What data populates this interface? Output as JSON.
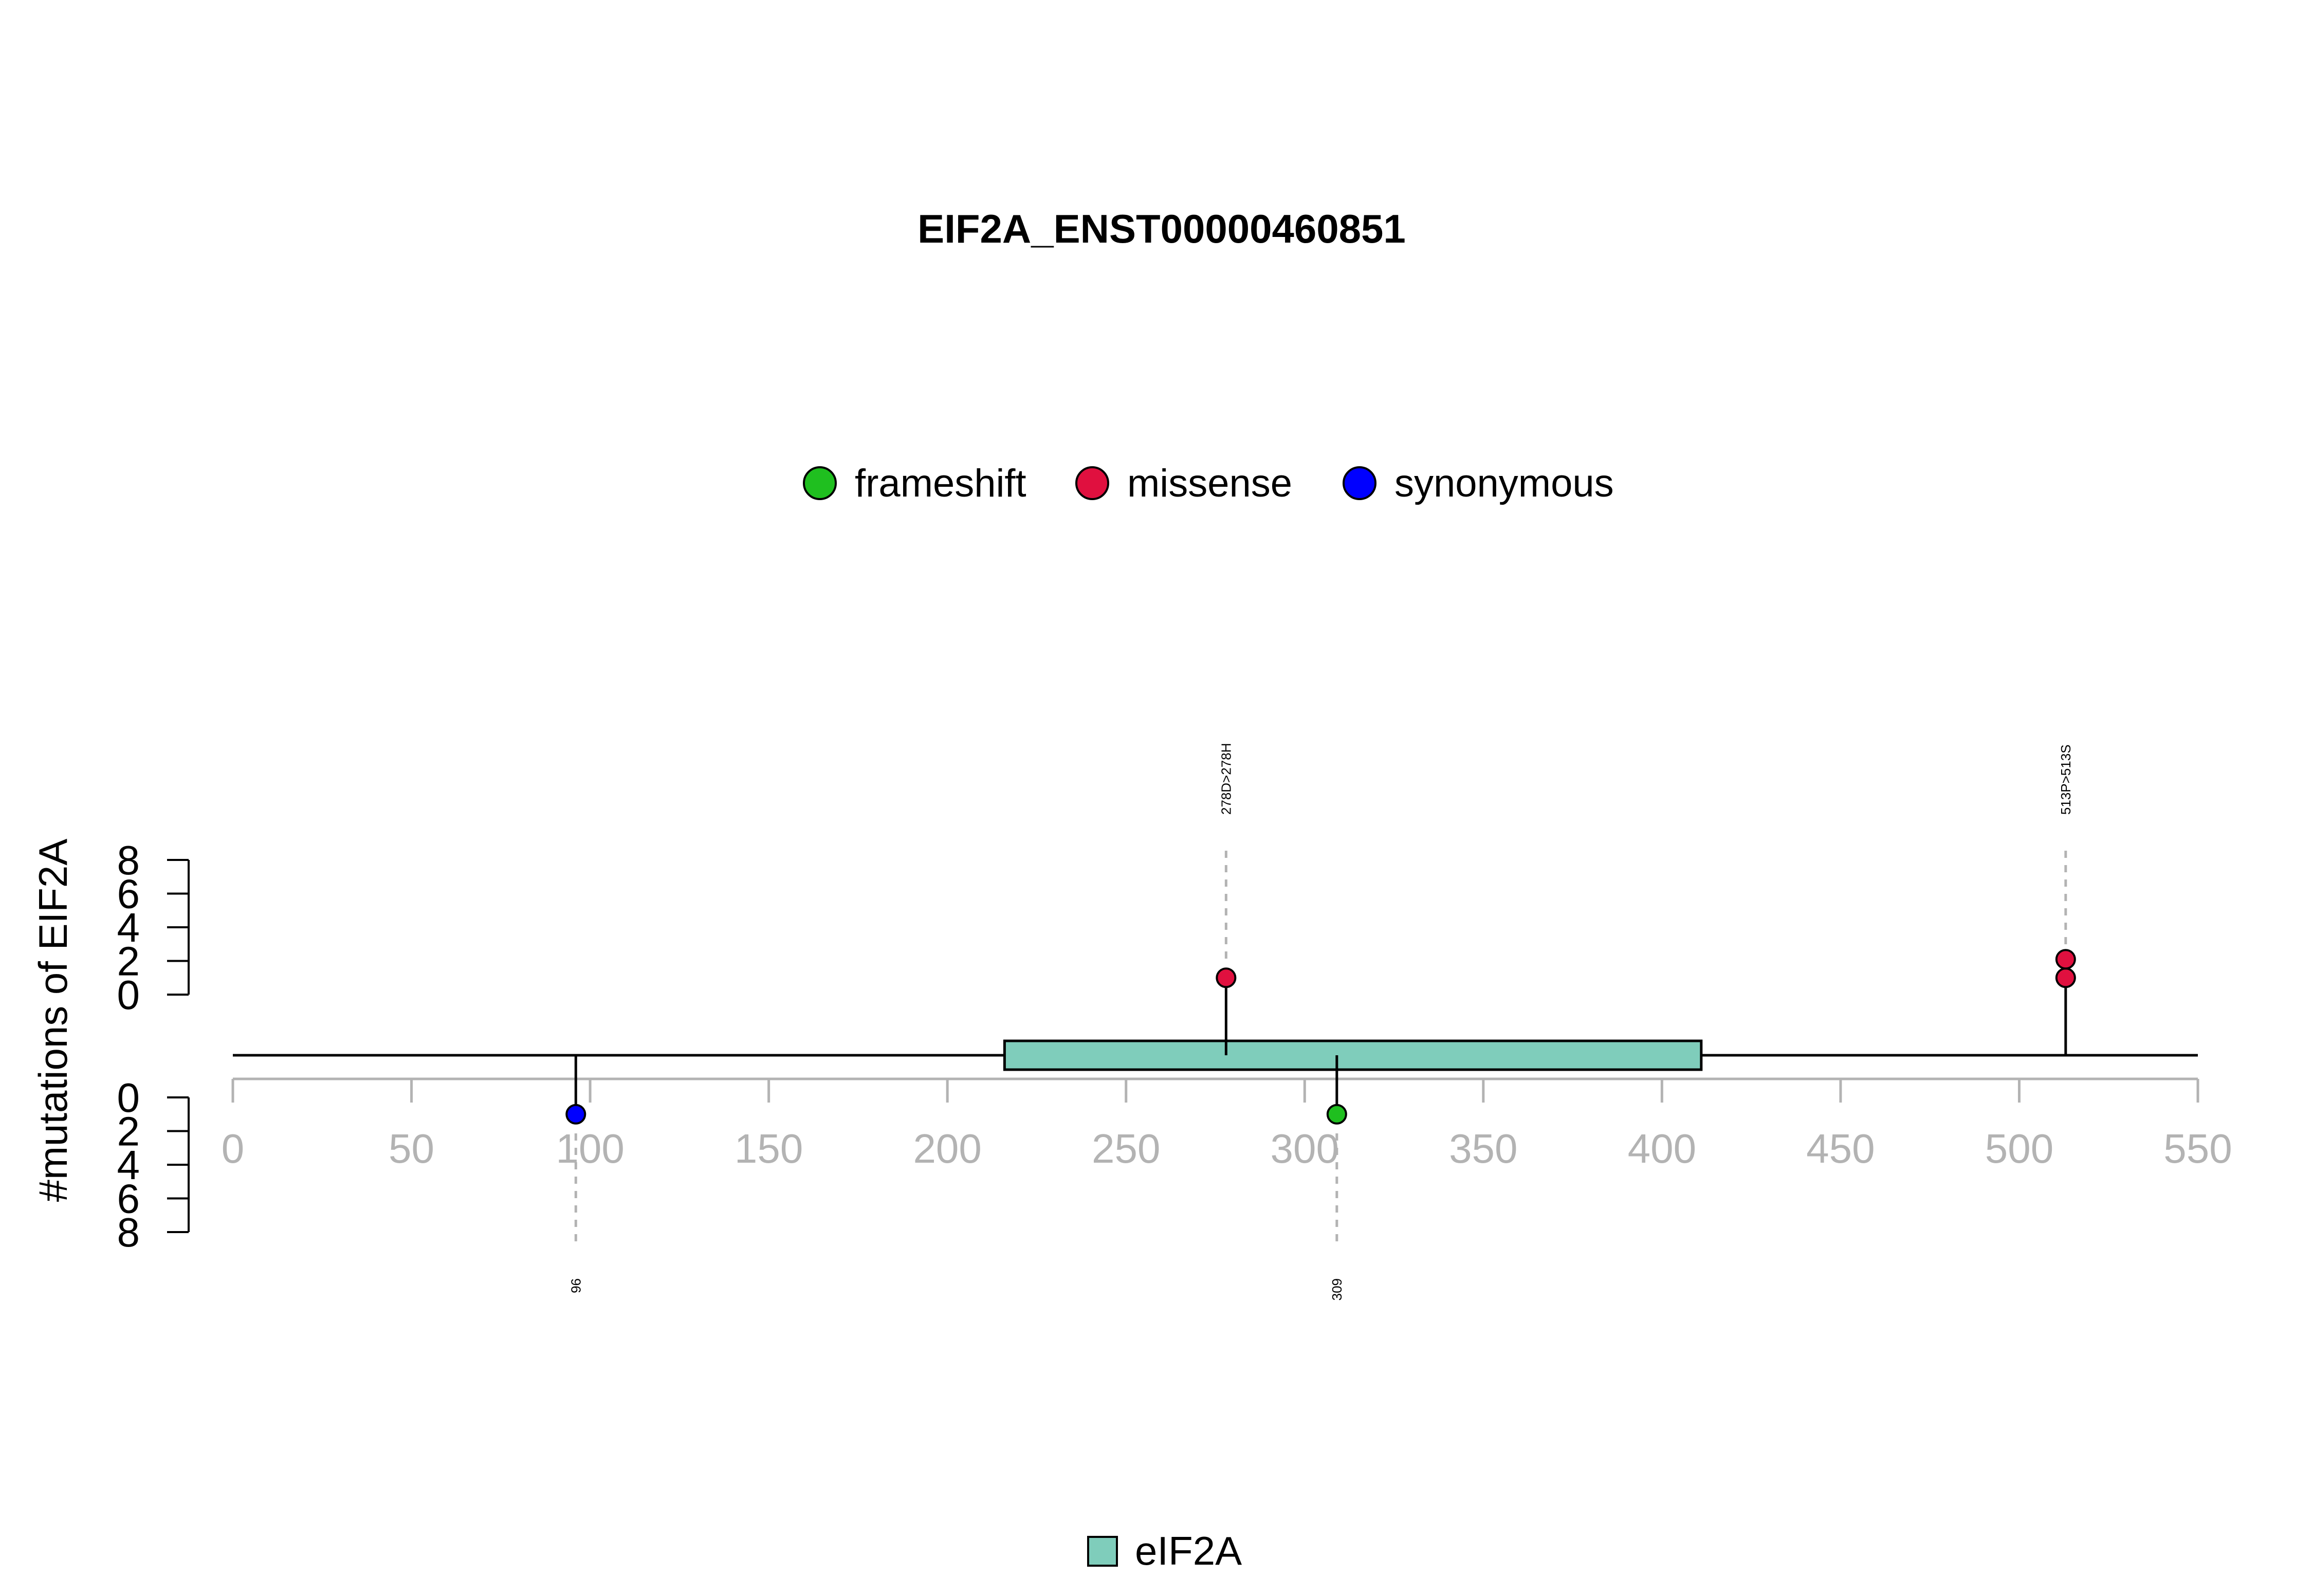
{
  "chart_data": {
    "type": "lollipop",
    "title": "EIF2A_ENST00000460851",
    "ylabel": "#mutations of EIF2A",
    "xlim": [
      0,
      550
    ],
    "x_ticks": [
      0,
      50,
      100,
      150,
      200,
      250,
      300,
      350,
      400,
      450,
      500,
      550
    ],
    "y_ticks_top": [
      0,
      2,
      4,
      6,
      8
    ],
    "y_ticks_bottom": [
      0,
      2,
      4,
      6,
      8
    ],
    "ylim": [
      0,
      8
    ],
    "legend_top": [
      {
        "name": "frameshift",
        "color": "#1FBF1F"
      },
      {
        "name": "missense",
        "color": "#E0103F"
      },
      {
        "name": "synonymous",
        "color": "#0000FF"
      }
    ],
    "domains": [
      {
        "name": "eIF2A",
        "start": 216,
        "end": 411,
        "color": "#7FCDBB"
      }
    ],
    "mutations": [
      {
        "position": 278,
        "count": 1,
        "type": "missense",
        "side": "top",
        "label": "278D>278H"
      },
      {
        "position": 513,
        "count": 2,
        "type": "missense",
        "side": "top",
        "label": "513P>513S"
      },
      {
        "position": 96,
        "count": 1,
        "type": "synonymous",
        "side": "bottom",
        "label": "96"
      },
      {
        "position": 309,
        "count": 1,
        "type": "frameshift",
        "side": "bottom",
        "label": "309"
      }
    ]
  }
}
